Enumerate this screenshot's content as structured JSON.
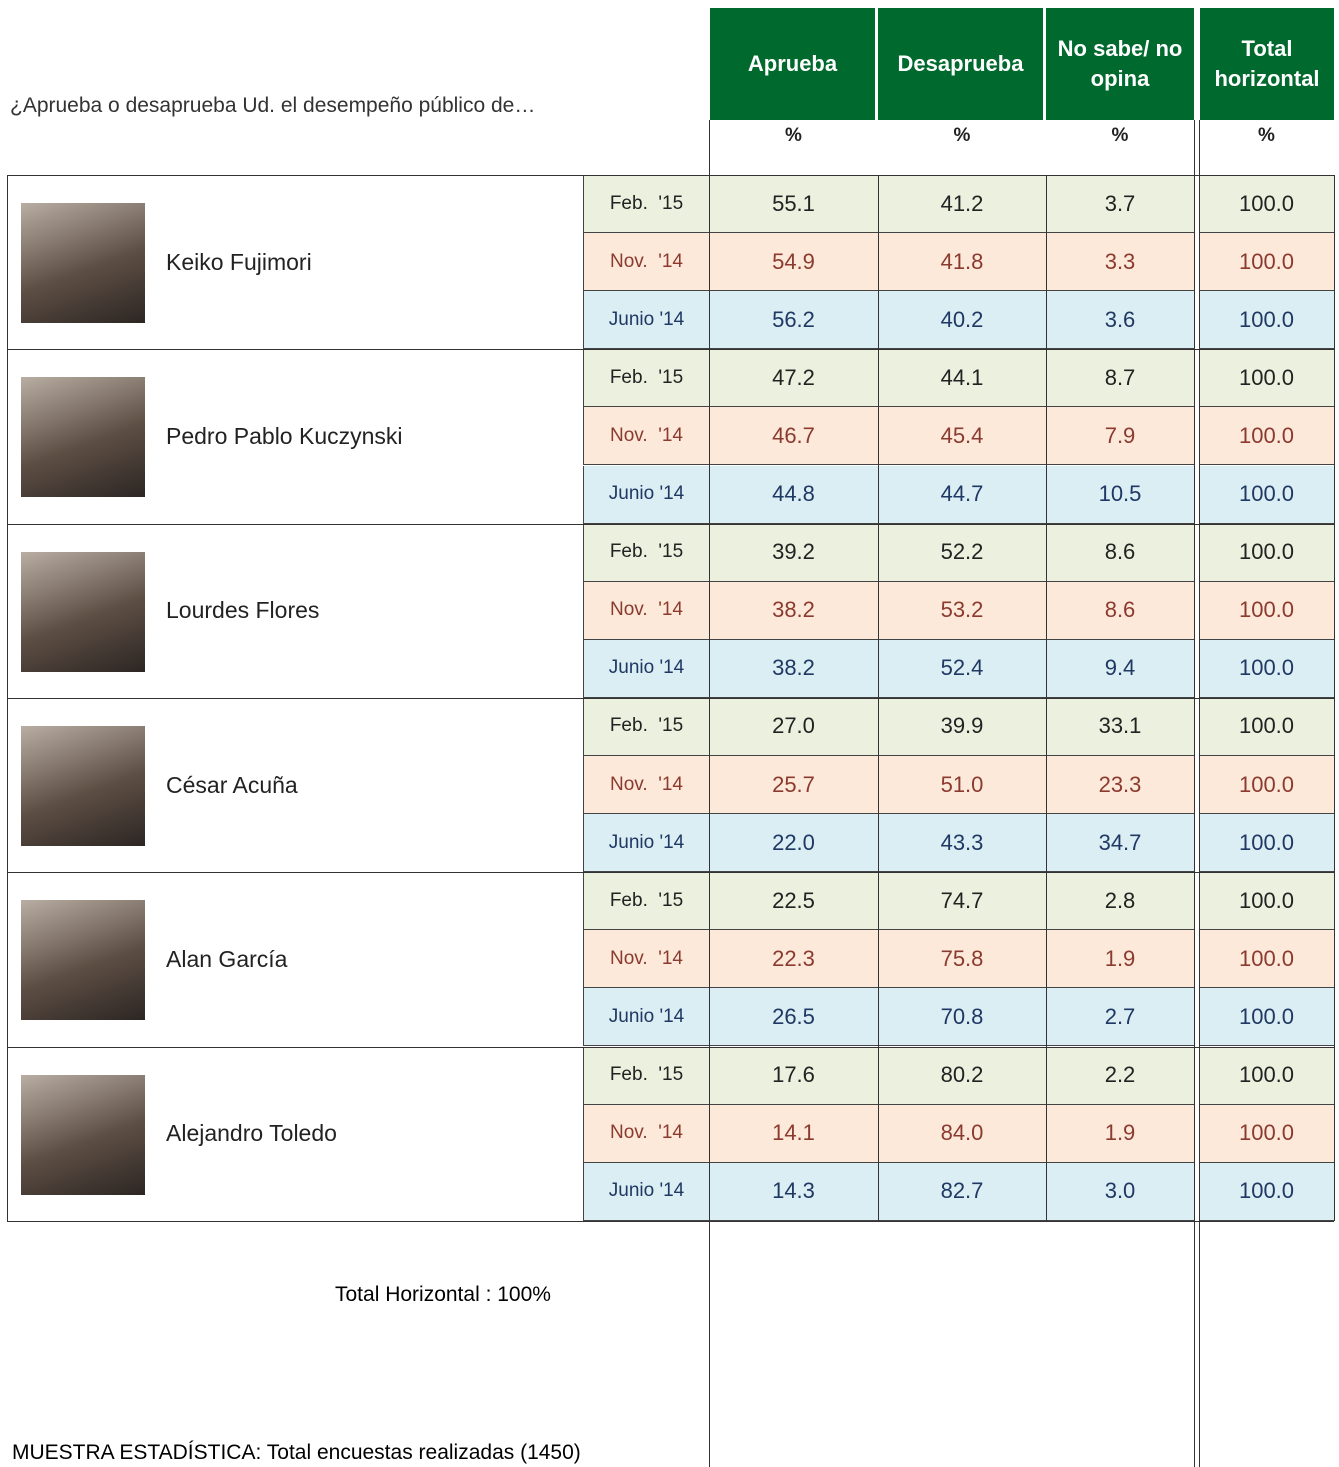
{
  "question": "¿Aprueba o desaprueba Ud. el desempeño público de…",
  "columns": [
    {
      "label": "Aprueba",
      "unit": "%"
    },
    {
      "label": "Desaprueba",
      "unit": "%"
    },
    {
      "label": "No sabe/ no opina",
      "unit": "%"
    },
    {
      "label": "Total horizontal",
      "unit": "%"
    }
  ],
  "people": [
    {
      "name": "Keiko Fujimori",
      "rows": [
        {
          "period": "Feb.  '15",
          "values": [
            "55.1",
            "41.2",
            "3.7",
            "100.0"
          ]
        },
        {
          "period": "Nov.  '14",
          "values": [
            "54.9",
            "41.8",
            "3.3",
            "100.0"
          ]
        },
        {
          "period": "Junio '14",
          "values": [
            "56.2",
            "40.2",
            "3.6",
            "100.0"
          ]
        }
      ]
    },
    {
      "name": "Pedro Pablo Kuczynski",
      "rows": [
        {
          "period": "Feb.  '15",
          "values": [
            "47.2",
            "44.1",
            "8.7",
            "100.0"
          ]
        },
        {
          "period": "Nov.  '14",
          "values": [
            "46.7",
            "45.4",
            "7.9",
            "100.0"
          ]
        },
        {
          "period": "Junio '14",
          "values": [
            "44.8",
            "44.7",
            "10.5",
            "100.0"
          ]
        }
      ]
    },
    {
      "name": "Lourdes Flores",
      "rows": [
        {
          "period": "Feb.  '15",
          "values": [
            "39.2",
            "52.2",
            "8.6",
            "100.0"
          ]
        },
        {
          "period": "Nov.  '14",
          "values": [
            "38.2",
            "53.2",
            "8.6",
            "100.0"
          ]
        },
        {
          "period": "Junio '14",
          "values": [
            "38.2",
            "52.4",
            "9.4",
            "100.0"
          ]
        }
      ]
    },
    {
      "name": "César Acuña",
      "rows": [
        {
          "period": "Feb.  '15",
          "values": [
            "27.0",
            "39.9",
            "33.1",
            "100.0"
          ]
        },
        {
          "period": "Nov.  '14",
          "values": [
            "25.7",
            "51.0",
            "23.3",
            "100.0"
          ]
        },
        {
          "period": "Junio '14",
          "values": [
            "22.0",
            "43.3",
            "34.7",
            "100.0"
          ]
        }
      ]
    },
    {
      "name": "Alan García",
      "rows": [
        {
          "period": "Feb.  '15",
          "values": [
            "22.5",
            "74.7",
            "2.8",
            "100.0"
          ]
        },
        {
          "period": "Nov.  '14",
          "values": [
            "22.3",
            "75.8",
            "1.9",
            "100.0"
          ]
        },
        {
          "period": "Junio '14",
          "values": [
            "26.5",
            "70.8",
            "2.7",
            "100.0"
          ]
        }
      ]
    },
    {
      "name": "Alejandro Toledo",
      "rows": [
        {
          "period": "Feb.  '15",
          "values": [
            "17.6",
            "80.2",
            "2.2",
            "100.0"
          ]
        },
        {
          "period": "Nov.  '14",
          "values": [
            "14.1",
            "84.0",
            "1.9",
            "100.0"
          ]
        },
        {
          "period": "Junio '14",
          "values": [
            "14.3",
            "82.7",
            "3.0",
            "100.0"
          ]
        }
      ]
    }
  ],
  "footer": {
    "total_note": "Total Horizontal : 100%",
    "sample": "MUESTRA ESTADÍSTICA: Total encuestas realizadas (1450)"
  }
}
